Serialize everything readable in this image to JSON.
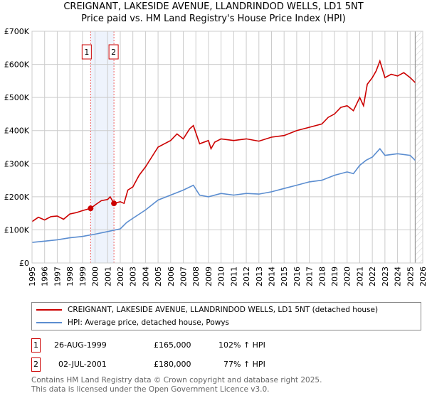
{
  "chart_data": {
    "type": "line",
    "title": "CREIGNANT, LAKESIDE AVENUE, LLANDRINDOD WELLS, LD1 5NT",
    "subtitle": "Price paid vs. HM Land Registry's House Price Index (HPI)",
    "xlim": [
      1995,
      2026
    ],
    "ylim": [
      0,
      700000
    ],
    "yticks": [
      {
        "v": 0,
        "label": "£0"
      },
      {
        "v": 100000,
        "label": "£100K"
      },
      {
        "v": 200000,
        "label": "£200K"
      },
      {
        "v": 300000,
        "label": "£300K"
      },
      {
        "v": 400000,
        "label": "£400K"
      },
      {
        "v": 500000,
        "label": "£500K"
      },
      {
        "v": 600000,
        "label": "£600K"
      },
      {
        "v": 700000,
        "label": "£700K"
      }
    ],
    "xticks": [
      "1995",
      "1996",
      "1997",
      "1998",
      "1999",
      "2000",
      "2001",
      "2002",
      "2003",
      "2004",
      "2005",
      "2006",
      "2007",
      "2008",
      "2009",
      "2010",
      "2011",
      "2012",
      "2013",
      "2014",
      "2015",
      "2016",
      "2017",
      "2018",
      "2019",
      "2020",
      "2021",
      "2022",
      "2023",
      "2024",
      "2025",
      "2026"
    ],
    "grid": true,
    "series": [
      {
        "name": "CREIGNANT, LAKESIDE AVENUE, LLANDRINDOD WELLS, LD1 5NT (detached house)",
        "color": "#cc0000",
        "x": [
          1995,
          1995.5,
          1996,
          1996.5,
          1997,
          1997.5,
          1998,
          1998.5,
          1999,
          1999.65,
          2000,
          2000.5,
          2001,
          2001.2,
          2001.5,
          2002,
          2002.3,
          2002.6,
          2003,
          2003.5,
          2004,
          2004.5,
          2005,
          2005.5,
          2006,
          2006.5,
          2007,
          2007.5,
          2007.8,
          2008.3,
          2009,
          2009.2,
          2009.5,
          2010,
          2011,
          2012,
          2013,
          2014,
          2015,
          2016,
          2017,
          2018,
          2018.5,
          2019,
          2019.5,
          2020,
          2020.5,
          2021,
          2021.3,
          2021.6,
          2022,
          2022.3,
          2022.6,
          2023,
          2023.5,
          2024,
          2024.5,
          2025,
          2025.4
        ],
        "values": [
          125000,
          138000,
          130000,
          140000,
          142000,
          132000,
          148000,
          152000,
          158000,
          165000,
          175000,
          188000,
          192000,
          200000,
          180000,
          185000,
          180000,
          220000,
          230000,
          265000,
          290000,
          320000,
          350000,
          360000,
          370000,
          390000,
          375000,
          405000,
          415000,
          360000,
          370000,
          345000,
          365000,
          375000,
          370000,
          375000,
          368000,
          380000,
          385000,
          400000,
          410000,
          420000,
          440000,
          450000,
          470000,
          475000,
          460000,
          500000,
          475000,
          540000,
          560000,
          580000,
          610000,
          560000,
          570000,
          565000,
          575000,
          560000,
          545000
        ]
      },
      {
        "name": "HPI: Average price, detached house, Powys",
        "color": "#5b8dd0",
        "x": [
          1995,
          1996,
          1997,
          1998,
          1999,
          2000,
          2001,
          2002,
          2002.5,
          2003,
          2004,
          2005,
          2006,
          2007,
          2007.8,
          2008.3,
          2009,
          2010,
          2011,
          2012,
          2013,
          2014,
          2015,
          2016,
          2017,
          2018,
          2019,
          2020,
          2020.5,
          2021,
          2021.5,
          2022,
          2022.6,
          2023,
          2024,
          2025,
          2025.4
        ],
        "values": [
          62000,
          66000,
          70000,
          76000,
          80000,
          87000,
          95000,
          103000,
          122000,
          135000,
          160000,
          190000,
          205000,
          220000,
          235000,
          205000,
          200000,
          210000,
          205000,
          210000,
          208000,
          215000,
          225000,
          235000,
          245000,
          250000,
          265000,
          275000,
          270000,
          295000,
          310000,
          320000,
          345000,
          325000,
          330000,
          325000,
          310000
        ]
      }
    ],
    "sales": [
      {
        "label": "1",
        "x": 1999.65,
        "value": 165000
      },
      {
        "label": "2",
        "x": 2001.5,
        "value": 180000
      }
    ],
    "forecast_from": 2025.4
  },
  "legend": {
    "property": "CREIGNANT, LAKESIDE AVENUE, LLANDRINDOD WELLS, LD1 5NT (detached house)",
    "hpi": "HPI: Average price, detached house, Powys"
  },
  "table": [
    {
      "num": "1",
      "date": "26-AUG-1999",
      "price": "£165,000",
      "hpi": "102% ↑ HPI"
    },
    {
      "num": "2",
      "date": "02-JUL-2001",
      "price": "£180,000",
      "hpi": "77% ↑ HPI"
    }
  ],
  "footer": {
    "line1": "Contains HM Land Registry data © Crown copyright and database right 2025.",
    "line2": "This data is licensed under the Open Government Licence v3.0."
  }
}
